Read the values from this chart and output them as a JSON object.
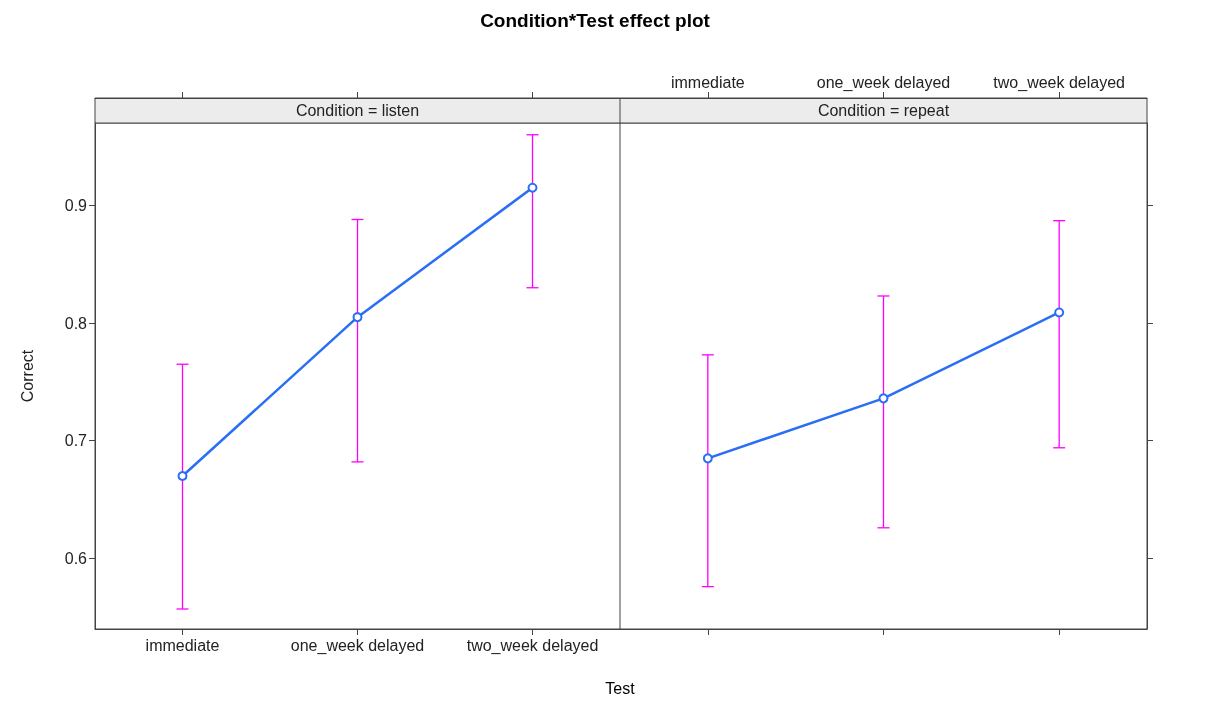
{
  "chart_data": [
    {
      "type": "line",
      "title": "Condition*Test effect plot",
      "subtitle": "Condition = listen",
      "xlabel": "Test",
      "ylabel": "Correct",
      "categories": [
        "immediate",
        "one_week delayed",
        "two_week delayed"
      ],
      "series": [
        {
          "color": "#2a6ef5",
          "values": [
            0.67,
            0.805,
            0.915
          ],
          "errors": [
            [
              0.557,
              0.765
            ],
            [
              0.682,
              0.888
            ],
            [
              0.83,
              0.96
            ]
          ]
        }
      ],
      "ylim": [
        0.54,
        0.97
      ],
      "yticks": [
        0.6,
        0.7,
        0.8,
        0.9
      ],
      "grid": false,
      "marker": "circle",
      "line_style": "solid"
    },
    {
      "type": "line",
      "subtitle": "Condition = repeat",
      "categories": [
        "immediate",
        "one_week delayed",
        "two_week delayed"
      ],
      "series": [
        {
          "color": "#2a6ef5",
          "values": [
            0.685,
            0.736,
            0.809
          ],
          "errors": [
            [
              0.576,
              0.773
            ],
            [
              0.626,
              0.823
            ],
            [
              0.694,
              0.887
            ]
          ]
        }
      ],
      "ylim": [
        0.54,
        0.97
      ],
      "yticks": [
        0.6,
        0.7,
        0.8,
        0.9
      ],
      "grid": false,
      "marker": "circle",
      "line_style": "solid",
      "tick_labels": "x"
    }
  ]
}
